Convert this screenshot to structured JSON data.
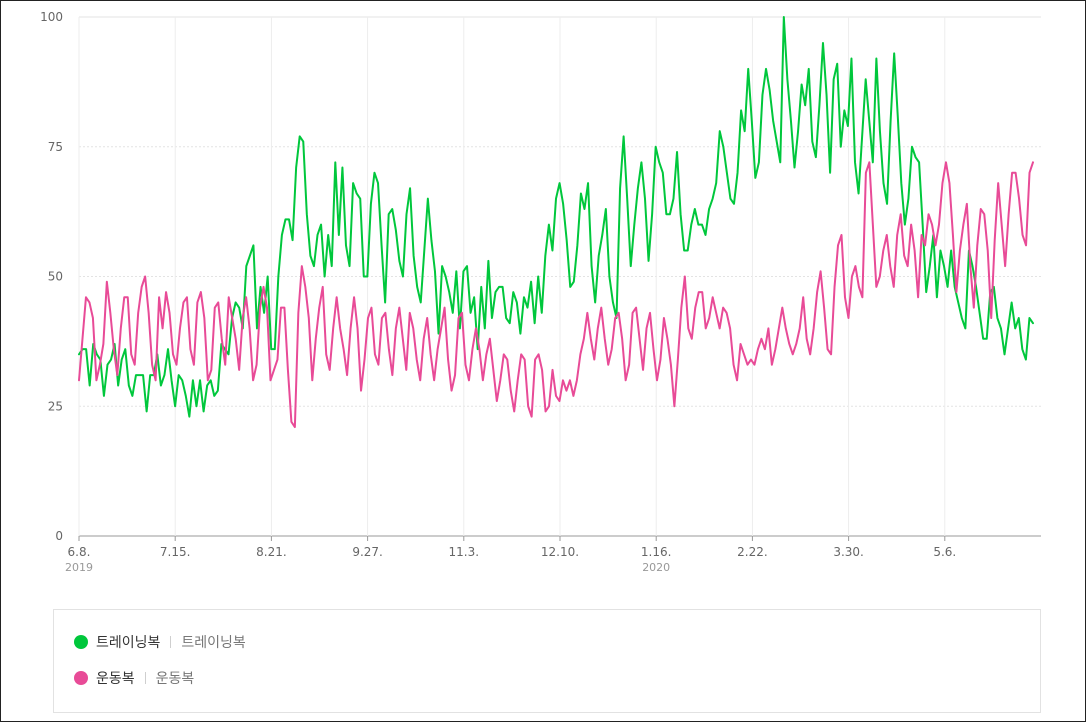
{
  "chart_data": {
    "type": "line",
    "title": "",
    "xlabel": "",
    "ylabel": "",
    "ylim": [
      0,
      100
    ],
    "yticks": [
      0,
      25,
      50,
      75,
      100
    ],
    "x_tick_labels": [
      "6.8.",
      "7.15.",
      "8.21.",
      "9.27.",
      "11.3.",
      "12.10.",
      "1.16.",
      "2.22.",
      "3.30.",
      "5.6."
    ],
    "x_year_labels": [
      {
        "at": "6.8.",
        "year": "2019"
      },
      {
        "at": "1.16.",
        "year": "2020"
      }
    ],
    "grid": true,
    "legend_placement": "bottom",
    "x_start": "2019-06-08",
    "x_end": "2020-06-12",
    "series": [
      {
        "name": "트레이닝복",
        "keyword": "트레이닝복",
        "color": "#00c73c",
        "values": [
          35,
          36,
          36,
          29,
          37,
          35,
          34,
          27,
          33,
          34,
          37,
          29,
          34,
          36,
          29,
          27,
          31,
          31,
          31,
          24,
          31,
          31,
          35,
          29,
          31,
          36,
          30,
          25,
          31,
          30,
          27,
          23,
          30,
          25,
          30,
          24,
          29,
          30,
          27,
          28,
          37,
          36,
          35,
          42,
          45,
          44,
          40,
          52,
          54,
          56,
          40,
          48,
          43,
          50,
          36,
          36,
          50,
          58,
          61,
          61,
          57,
          71,
          77,
          76,
          62,
          54,
          52,
          58,
          60,
          50,
          58,
          52,
          72,
          58,
          71,
          56,
          52,
          68,
          66,
          65,
          50,
          50,
          64,
          70,
          68,
          56,
          45,
          62,
          63,
          59,
          53,
          50,
          62,
          67,
          54,
          48,
          45,
          55,
          65,
          57,
          51,
          39,
          52,
          50,
          47,
          43,
          51,
          40,
          51,
          52,
          43,
          46,
          36,
          48,
          40,
          53,
          42,
          47,
          48,
          48,
          42,
          41,
          47,
          45,
          39,
          46,
          44,
          49,
          41,
          50,
          43,
          54,
          60,
          55,
          65,
          68,
          64,
          57,
          48,
          49,
          56,
          66,
          63,
          68,
          52,
          45,
          54,
          58,
          63,
          50,
          45,
          42,
          67,
          77,
          65,
          52,
          60,
          67,
          72,
          65,
          53,
          62,
          75,
          72,
          70,
          62,
          62,
          65,
          74,
          62,
          55,
          55,
          60,
          63,
          60,
          60,
          58,
          63,
          65,
          68,
          78,
          75,
          70,
          65,
          64,
          70,
          82,
          78,
          90,
          80,
          69,
          72,
          85,
          90,
          86,
          80,
          76,
          72,
          100,
          88,
          80,
          71,
          78,
          87,
          83,
          90,
          76,
          73,
          83,
          95,
          85,
          70,
          88,
          91,
          75,
          82,
          79,
          92,
          72,
          66,
          77,
          88,
          80,
          72,
          92,
          78,
          68,
          64,
          80,
          93,
          81,
          68,
          60,
          65,
          75,
          73,
          72,
          60,
          47,
          52,
          58,
          46,
          55,
          52,
          48,
          55,
          48,
          45,
          42,
          40,
          55,
          52,
          48,
          43,
          38,
          38,
          47,
          48,
          42,
          40,
          35,
          40,
          45,
          40,
          42,
          36,
          34,
          42,
          41
        ]
      },
      {
        "name": "운동복",
        "keyword": "운동복",
        "color": "#e84b97",
        "values": [
          30,
          38,
          46,
          45,
          42,
          30,
          33,
          37,
          49,
          43,
          36,
          31,
          40,
          46,
          46,
          35,
          33,
          43,
          48,
          50,
          43,
          33,
          30,
          46,
          40,
          47,
          43,
          35,
          33,
          40,
          45,
          46,
          36,
          33,
          45,
          47,
          42,
          30,
          32,
          44,
          45,
          38,
          33,
          46,
          42,
          38,
          32,
          42,
          46,
          40,
          30,
          33,
          44,
          48,
          44,
          30,
          32,
          34,
          44,
          44,
          32,
          22,
          21,
          43,
          52,
          48,
          42,
          30,
          38,
          44,
          48,
          35,
          32,
          40,
          46,
          40,
          36,
          31,
          40,
          46,
          40,
          28,
          34,
          42,
          44,
          35,
          33,
          42,
          43,
          36,
          31,
          40,
          44,
          38,
          32,
          43,
          40,
          34,
          30,
          38,
          42,
          35,
          30,
          36,
          40,
          44,
          34,
          28,
          31,
          42,
          43,
          33,
          30,
          36,
          40,
          36,
          30,
          35,
          38,
          32,
          26,
          30,
          35,
          34,
          28,
          24,
          30,
          35,
          34,
          25,
          23,
          34,
          35,
          32,
          24,
          25,
          32,
          27,
          26,
          30,
          28,
          30,
          27,
          30,
          35,
          38,
          43,
          38,
          34,
          40,
          44,
          38,
          33,
          36,
          42,
          43,
          38,
          30,
          33,
          43,
          44,
          38,
          32,
          40,
          43,
          36,
          30,
          34,
          42,
          38,
          33,
          25,
          34,
          44,
          50,
          40,
          38,
          44,
          47,
          47,
          40,
          42,
          46,
          43,
          40,
          44,
          43,
          40,
          33,
          30,
          37,
          35,
          33,
          34,
          33,
          36,
          38,
          36,
          40,
          33,
          36,
          40,
          44,
          40,
          37,
          35,
          37,
          40,
          46,
          38,
          35,
          40,
          47,
          51,
          44,
          36,
          35,
          48,
          56,
          58,
          46,
          42,
          50,
          52,
          48,
          46,
          70,
          72,
          60,
          48,
          50,
          55,
          58,
          52,
          48,
          58,
          62,
          54,
          52,
          60,
          55,
          46,
          58,
          56,
          62,
          60,
          56,
          60,
          68,
          72,
          68,
          58,
          47,
          55,
          60,
          64,
          52,
          44,
          56,
          63,
          62,
          55,
          42,
          57,
          68,
          60,
          52,
          62,
          70,
          70,
          65,
          58,
          56,
          70,
          72
        ]
      }
    ]
  }
}
